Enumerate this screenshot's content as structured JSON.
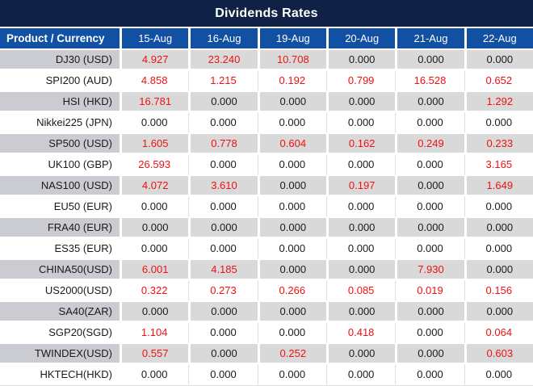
{
  "title": "Dividends Rates",
  "table": {
    "product_header": "Product / Currency",
    "date_headers": [
      "15-Aug",
      "16-Aug",
      "19-Aug",
      "20-Aug",
      "21-Aug",
      "22-Aug"
    ],
    "rows": [
      {
        "product": "DJ30 (USD)",
        "values": [
          "4.927",
          "23.240",
          "10.708",
          "0.000",
          "0.000",
          "0.000"
        ]
      },
      {
        "product": "SPI200 (AUD)",
        "values": [
          "4.858",
          "1.215",
          "0.192",
          "0.799",
          "16.528",
          "0.652"
        ]
      },
      {
        "product": "HSI (HKD)",
        "values": [
          "16.781",
          "0.000",
          "0.000",
          "0.000",
          "0.000",
          "1.292"
        ]
      },
      {
        "product": "Nikkei225 (JPN)",
        "values": [
          "0.000",
          "0.000",
          "0.000",
          "0.000",
          "0.000",
          "0.000"
        ]
      },
      {
        "product": "SP500 (USD)",
        "values": [
          "1.605",
          "0.778",
          "0.604",
          "0.162",
          "0.249",
          "0.233"
        ]
      },
      {
        "product": "UK100 (GBP)",
        "values": [
          "26.593",
          "0.000",
          "0.000",
          "0.000",
          "0.000",
          "3.165"
        ]
      },
      {
        "product": "NAS100 (USD)",
        "values": [
          "4.072",
          "3.610",
          "0.000",
          "0.197",
          "0.000",
          "1.649"
        ]
      },
      {
        "product": "EU50 (EUR)",
        "values": [
          "0.000",
          "0.000",
          "0.000",
          "0.000",
          "0.000",
          "0.000"
        ]
      },
      {
        "product": "FRA40 (EUR)",
        "values": [
          "0.000",
          "0.000",
          "0.000",
          "0.000",
          "0.000",
          "0.000"
        ]
      },
      {
        "product": "ES35 (EUR)",
        "values": [
          "0.000",
          "0.000",
          "0.000",
          "0.000",
          "0.000",
          "0.000"
        ]
      },
      {
        "product": "CHINA50(USD)",
        "values": [
          "6.001",
          "4.185",
          "0.000",
          "0.000",
          "7.930",
          "0.000"
        ]
      },
      {
        "product": "US2000(USD)",
        "values": [
          "0.322",
          "0.273",
          "0.266",
          "0.085",
          "0.019",
          "0.156"
        ]
      },
      {
        "product": "SA40(ZAR)",
        "values": [
          "0.000",
          "0.000",
          "0.000",
          "0.000",
          "0.000",
          "0.000"
        ]
      },
      {
        "product": "SGP20(SGD)",
        "values": [
          "1.104",
          "0.000",
          "0.000",
          "0.418",
          "0.000",
          "0.064"
        ]
      },
      {
        "product": "TWINDEX(USD)",
        "values": [
          "0.557",
          "0.000",
          "0.252",
          "0.000",
          "0.000",
          "0.603"
        ]
      },
      {
        "product": "HKTECH(HKD)",
        "values": [
          "0.000",
          "0.000",
          "0.000",
          "0.000",
          "0.000",
          "0.000"
        ]
      }
    ]
  },
  "colors": {
    "title_bg": "#0f2145",
    "header_bg": "#1150a2",
    "header_text": "#ffffff",
    "shaded_product_bg": "#cbccd2",
    "shaded_value_bg": "#d9d9d9",
    "nonzero_value_text": "#ee1111",
    "zero_value_text": "#1a1a1a"
  }
}
